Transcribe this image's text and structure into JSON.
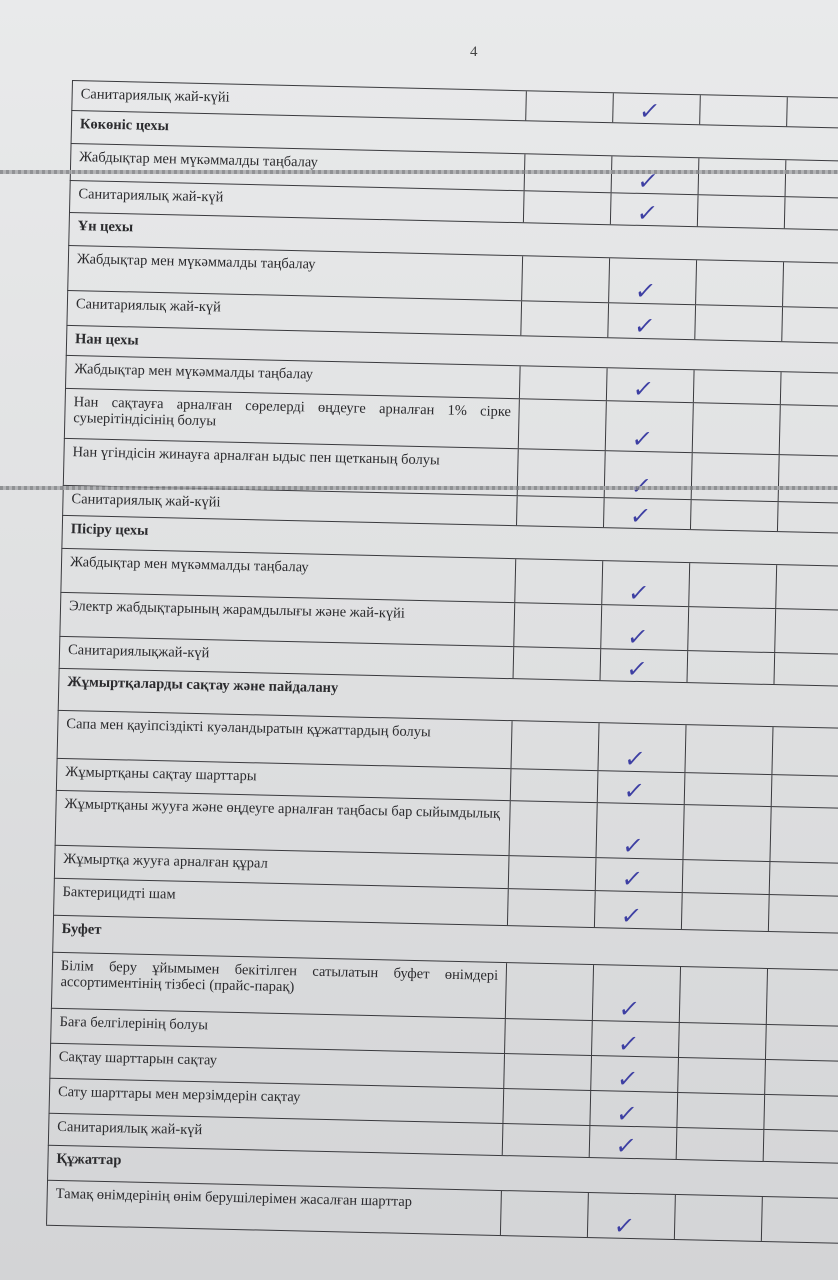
{
  "page_number": "4",
  "check_color": "#3d3fa3",
  "check_icon": "✓",
  "rows": [
    {
      "type": "item",
      "text": "Санитариялық жай-күйі",
      "checked": true,
      "h": 30
    },
    {
      "type": "section",
      "text": "Көкөніс цехы",
      "h": 33
    },
    {
      "type": "item",
      "text": "Жабдықтар мен мүкәммалды таңбалау",
      "checked": true,
      "h": 37
    },
    {
      "type": "item",
      "text": "Санитариялық жай-күй",
      "checked": true,
      "h": 32
    },
    {
      "type": "section",
      "text": "Ұн цехы",
      "h": 33
    },
    {
      "type": "item",
      "text": "Жабдықтар мен мүкәммалды таңбалау",
      "checked": true,
      "h": 45
    },
    {
      "type": "item",
      "text": "Санитариялық жай-күй",
      "checked": true,
      "h": 35
    },
    {
      "type": "section",
      "text": "Нан цехы",
      "h": 30
    },
    {
      "type": "item",
      "text": "Жабдықтар мен мүкәммалды таңбалау",
      "checked": true,
      "h": 33
    },
    {
      "type": "item",
      "text": "Нан сақтауға арналған сөрелерді өңдеуге арналған 1% сірке суыерітіндісінің болуы",
      "checked": true,
      "h": 50
    },
    {
      "type": "item",
      "text": "Нан үгіндісін жинауға арналған ыдыс пен щетканың болуы",
      "checked": true,
      "h": 47
    },
    {
      "type": "item",
      "text": "Санитариялық жай-күйі",
      "checked": true,
      "h": 30
    },
    {
      "type": "section",
      "text": "Пісіру цехы",
      "h": 33
    },
    {
      "type": "item",
      "text": "Жабдықтар мен мүкәммалды таңбалау",
      "checked": true,
      "h": 44
    },
    {
      "type": "item",
      "text": "Электр жабдықтарының жарамдылығы және жай-күйі",
      "checked": true,
      "h": 44
    },
    {
      "type": "item",
      "text": "Санитариялықжай-күй",
      "checked": true,
      "h": 32
    },
    {
      "type": "section",
      "text": "Жұмыртқаларды сақтау және пайдалану",
      "h": 42
    },
    {
      "type": "item",
      "text": "Сапа мен қауіпсіздікті куәландыратын құжаттардың болуы",
      "checked": true,
      "h": 48
    },
    {
      "type": "item",
      "text": "Жұмыртқаны сақтау шарттары",
      "checked": true,
      "h": 32
    },
    {
      "type": "item",
      "text": "Жұмыртқаны жууға және өңдеуге арналған таңбасы бар сыйымдылық",
      "checked": true,
      "h": 55
    },
    {
      "type": "item",
      "text": "Жұмыртқа жууға арналған құрал",
      "checked": true,
      "h": 33
    },
    {
      "type": "item",
      "text": "Бактерицидті шам",
      "checked": true,
      "h": 37
    },
    {
      "type": "section",
      "text": "Буфет",
      "h": 37
    },
    {
      "type": "item",
      "text": "Білім беру ұйымымен бекітілген сатылатын буфет өнімдері ассортиментінің тізбесі (прайс-парақ)",
      "checked": true,
      "h": 56
    },
    {
      "type": "item",
      "text": "Баға белгілерінің болуы",
      "checked": true,
      "h": 35
    },
    {
      "type": "item",
      "text": "Сақтау шарттарын сақтау",
      "checked": true,
      "h": 35
    },
    {
      "type": "item",
      "text": "Сату шарттары мен мерзімдерін сақтау",
      "checked": true,
      "h": 35
    },
    {
      "type": "item",
      "text": "Санитариялық жай-күй",
      "checked": true,
      "h": 32
    },
    {
      "type": "section",
      "text": "Құжаттар",
      "h": 35
    },
    {
      "type": "item",
      "text": "Тамақ өнімдерінің өнім берушілерімен жасалған шарттар",
      "checked": true,
      "h": 45
    }
  ]
}
